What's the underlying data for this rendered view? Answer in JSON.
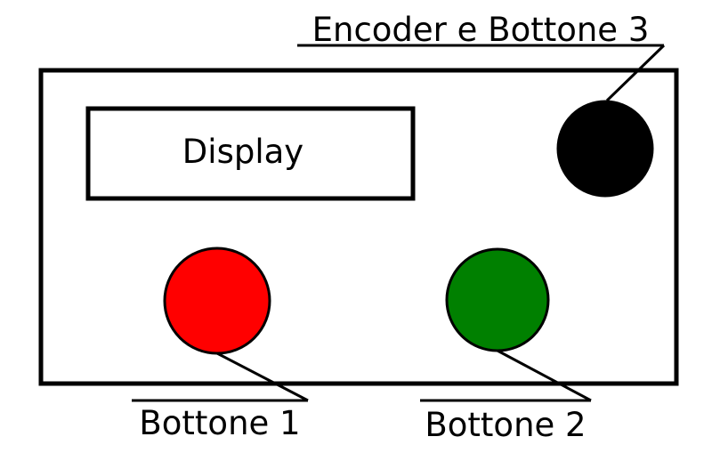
{
  "display": {
    "label": "Display"
  },
  "encoder": {
    "label": "Encoder e Bottone 3",
    "color": "#000000"
  },
  "button1": {
    "label": "Bottone 1",
    "color": "#ff0000"
  },
  "button2": {
    "label": "Bottone 2",
    "color": "#008000"
  }
}
